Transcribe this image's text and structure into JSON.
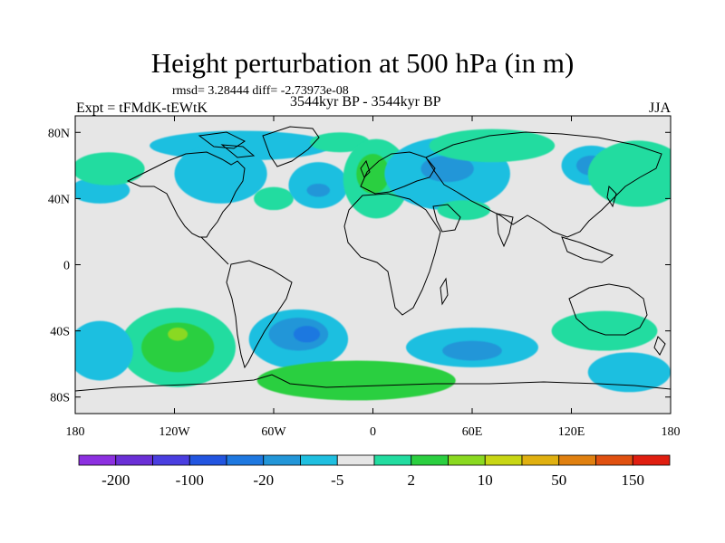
{
  "title": "Height perturbation at 500 hPa (in m)",
  "stats": "rmsd= 3.28444 diff= -2.73973e-08",
  "period": "3544kyr BP - 3544kyr BP",
  "experiment": "Expt = tFMdK-tEWtK",
  "season": "JJA",
  "chart_data": {
    "type": "heatmap",
    "subtype": "filled contour map (global cylindrical equidistant)",
    "title": "Height perturbation at 500 hPa (in m)",
    "units": "m",
    "xlim": [
      -180,
      180
    ],
    "ylim": [
      -90,
      90
    ],
    "x_ticks": [
      {
        "value": -180,
        "label": "180"
      },
      {
        "value": -120,
        "label": "120W"
      },
      {
        "value": -60,
        "label": "60W"
      },
      {
        "value": 0,
        "label": "0"
      },
      {
        "value": 60,
        "label": "60E"
      },
      {
        "value": 120,
        "label": "120E"
      },
      {
        "value": 180,
        "label": "180"
      }
    ],
    "y_ticks": [
      {
        "value": 80,
        "label": "80N"
      },
      {
        "value": 40,
        "label": "40N"
      },
      {
        "value": 0,
        "label": "0"
      },
      {
        "value": -40,
        "label": "40S"
      },
      {
        "value": -80,
        "label": "80S"
      }
    ],
    "colorbar": {
      "colors": [
        "#8c30e0",
        "#6a2fd6",
        "#4a3ee0",
        "#2255e0",
        "#1e78e0",
        "#2296d8",
        "#1fbfe0",
        "#e6e6e6",
        "#22dca0",
        "#2bcf40",
        "#8ad920",
        "#c8d614",
        "#e0b010",
        "#e08010",
        "#e05010",
        "#e01e10"
      ],
      "labels": [
        {
          "after_bin": 1,
          "text": "-200"
        },
        {
          "after_bin": 3,
          "text": "-100"
        },
        {
          "after_bin": 5,
          "text": "-20"
        },
        {
          "after_bin": 7,
          "text": "-5"
        },
        {
          "after_bin": 9,
          "text": "2"
        },
        {
          "after_bin": 11,
          "text": "10"
        },
        {
          "after_bin": 13,
          "text": "50"
        },
        {
          "after_bin": 15,
          "text": "150"
        }
      ]
    },
    "regions": [
      {
        "name": "arctic-negative",
        "lon": -80,
        "lat": 72,
        "rx": 55,
        "ry": 9,
        "color": "#1fbfe0"
      },
      {
        "name": "arctic-positive",
        "lon": -20,
        "lat": 74,
        "rx": 18,
        "ry": 6,
        "color": "#22dca0"
      },
      {
        "name": "north-america-negative",
        "lon": -92,
        "lat": 55,
        "rx": 28,
        "ry": 18,
        "color": "#1fbfe0"
      },
      {
        "name": "north-atlantic-positive",
        "lon": -60,
        "lat": 40,
        "rx": 12,
        "ry": 7,
        "color": "#22dca0"
      },
      {
        "name": "mid-atlantic-negative",
        "lon": -33,
        "lat": 48,
        "rx": 18,
        "ry": 14,
        "color": "#1fbfe0"
      },
      {
        "name": "mid-atlantic-core",
        "lon": -33,
        "lat": 45,
        "rx": 7,
        "ry": 4,
        "color": "#2296d8"
      },
      {
        "name": "europe-positive",
        "lon": 2,
        "lat": 52,
        "rx": 20,
        "ry": 24,
        "color": "#22dca0"
      },
      {
        "name": "europe-positive-core",
        "lon": 0,
        "lat": 55,
        "rx": 10,
        "ry": 12,
        "color": "#2bcf40"
      },
      {
        "name": "eurasia-negative",
        "lon": 45,
        "lat": 55,
        "rx": 38,
        "ry": 22,
        "color": "#1fbfe0"
      },
      {
        "name": "eurasia-negative-core",
        "lon": 45,
        "lat": 58,
        "rx": 16,
        "ry": 8,
        "color": "#2296d8"
      },
      {
        "name": "caspian-positive",
        "lon": 55,
        "lat": 33,
        "rx": 16,
        "ry": 6,
        "color": "#22dca0"
      },
      {
        "name": "siberia-positive",
        "lon": 72,
        "lat": 72,
        "rx": 38,
        "ry": 10,
        "color": "#22dca0"
      },
      {
        "name": "east-asia-negative",
        "lon": 132,
        "lat": 60,
        "rx": 18,
        "ry": 12,
        "color": "#1fbfe0"
      },
      {
        "name": "east-asia-negative-core",
        "lon": 132,
        "lat": 60,
        "rx": 9,
        "ry": 6,
        "color": "#2296d8"
      },
      {
        "name": "pacific-positive",
        "lon": 160,
        "lat": 55,
        "rx": 30,
        "ry": 20,
        "color": "#22dca0"
      },
      {
        "name": "north-pacific-negative",
        "lon": -165,
        "lat": 45,
        "rx": 18,
        "ry": 8,
        "color": "#1fbfe0"
      },
      {
        "name": "north-pacific-positive",
        "lon": -160,
        "lat": 58,
        "rx": 22,
        "ry": 10,
        "color": "#22dca0"
      },
      {
        "name": "south-pacific-positive",
        "lon": -118,
        "lat": -50,
        "rx": 35,
        "ry": 24,
        "color": "#22dca0"
      },
      {
        "name": "south-pacific-positive-core",
        "lon": -118,
        "lat": -50,
        "rx": 22,
        "ry": 15,
        "color": "#2bcf40"
      },
      {
        "name": "south-pacific-max",
        "lon": -118,
        "lat": -42,
        "rx": 6,
        "ry": 4,
        "color": "#8ad920"
      },
      {
        "name": "sw-pacific-negative",
        "lon": -165,
        "lat": -52,
        "rx": 20,
        "ry": 18,
        "color": "#1fbfe0"
      },
      {
        "name": "south-atlantic-negative",
        "lon": -45,
        "lat": -45,
        "rx": 30,
        "ry": 18,
        "color": "#1fbfe0"
      },
      {
        "name": "south-atlantic-core",
        "lon": -45,
        "lat": -42,
        "rx": 18,
        "ry": 10,
        "color": "#2296d8"
      },
      {
        "name": "south-atlantic-min",
        "lon": -40,
        "lat": -42,
        "rx": 8,
        "ry": 5,
        "color": "#1e78e0"
      },
      {
        "name": "southern-ocean-positive",
        "lon": -10,
        "lat": -70,
        "rx": 60,
        "ry": 12,
        "color": "#2bcf40"
      },
      {
        "name": "indian-ocean-negative",
        "lon": 60,
        "lat": -50,
        "rx": 40,
        "ry": 12,
        "color": "#1fbfe0"
      },
      {
        "name": "indian-ocean-core",
        "lon": 60,
        "lat": -52,
        "rx": 18,
        "ry": 6,
        "color": "#2296d8"
      },
      {
        "name": "australia-positive",
        "lon": 140,
        "lat": -40,
        "rx": 32,
        "ry": 12,
        "color": "#22dca0"
      },
      {
        "name": "antarctic-negative",
        "lon": 155,
        "lat": -65,
        "rx": 25,
        "ry": 12,
        "color": "#1fbfe0"
      }
    ]
  }
}
